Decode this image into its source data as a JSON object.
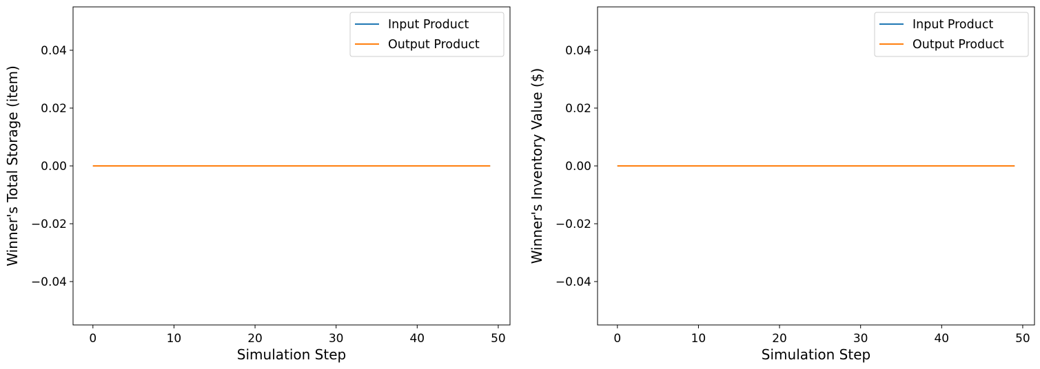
{
  "chart_data": [
    {
      "type": "line",
      "xlabel": "Simulation Step",
      "ylabel": "Winner's Total Storage (item)",
      "xlim": [
        -2.45,
        51.45
      ],
      "ylim": [
        -0.055,
        0.055
      ],
      "xticks": [
        0,
        10,
        20,
        30,
        40,
        50
      ],
      "yticks": [
        -0.04,
        -0.02,
        0.0,
        0.02,
        0.04
      ],
      "xtick_labels": [
        "0",
        "10",
        "20",
        "30",
        "40",
        "50"
      ],
      "ytick_labels": [
        "−0.04",
        "−0.02",
        "0.00",
        "0.02",
        "0.04"
      ],
      "grid": false,
      "legend_position": "top-right",
      "series": [
        {
          "name": "Input Product",
          "color": "#1f77b4",
          "x_start": 0,
          "x_end": 49,
          "constant_value": 0
        },
        {
          "name": "Output Product",
          "color": "#ff7f0e",
          "x_start": 0,
          "x_end": 49,
          "constant_value": 0
        }
      ]
    },
    {
      "type": "line",
      "xlabel": "Simulation Step",
      "ylabel": "Winner's Inventory Value ($)",
      "xlim": [
        -2.45,
        51.45
      ],
      "ylim": [
        -0.055,
        0.055
      ],
      "xticks": [
        0,
        10,
        20,
        30,
        40,
        50
      ],
      "yticks": [
        -0.04,
        -0.02,
        0.0,
        0.02,
        0.04
      ],
      "xtick_labels": [
        "0",
        "10",
        "20",
        "30",
        "40",
        "50"
      ],
      "ytick_labels": [
        "−0.04",
        "−0.02",
        "0.00",
        "0.02",
        "0.04"
      ],
      "grid": false,
      "legend_position": "top-right",
      "series": [
        {
          "name": "Input Product",
          "color": "#1f77b4",
          "x_start": 0,
          "x_end": 49,
          "constant_value": 0
        },
        {
          "name": "Output Product",
          "color": "#ff7f0e",
          "x_start": 0,
          "x_end": 49,
          "constant_value": 0
        }
      ]
    }
  ]
}
